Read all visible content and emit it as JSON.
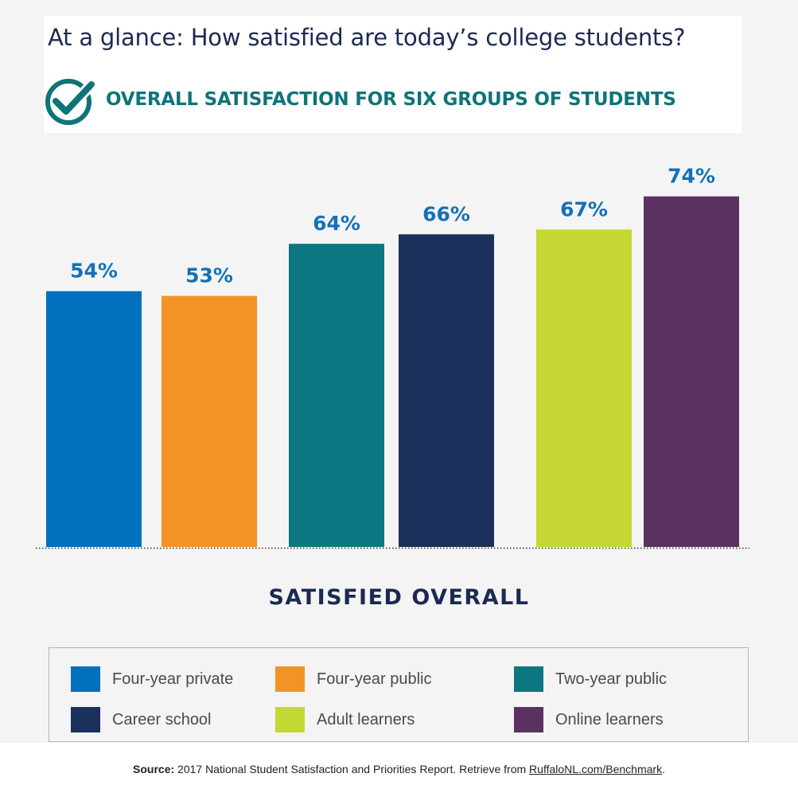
{
  "header": {
    "title": "At a glance: How satisfied are today’s college students?",
    "subtitle": "OVERALL SATISFACTION FOR SIX GROUPS OF STUDENTS",
    "icon": "check-circle-icon"
  },
  "chart_data": {
    "type": "bar",
    "categories": [
      "Four-year private",
      "Four-year public",
      "Two-year public",
      "Career school",
      "Adult learners",
      "Online learners"
    ],
    "values": [
      54,
      53,
      64,
      66,
      67,
      74
    ],
    "value_labels": [
      "54%",
      "53%",
      "64%",
      "66%",
      "67%",
      "74%"
    ],
    "colors": [
      "#0070bd",
      "#f39325",
      "#0c7781",
      "#1b305b",
      "#c4d733",
      "#5a325f"
    ],
    "label_color": "#1570b5",
    "xlabel": "SATISFIED OVERALL",
    "ylim": [
      0,
      80
    ],
    "grid": false,
    "legend": "bottom"
  },
  "legend": {
    "items": [
      {
        "label": "Four-year private",
        "color": "#0070bd"
      },
      {
        "label": "Four-year public",
        "color": "#f39325"
      },
      {
        "label": "Two-year public",
        "color": "#0c7781"
      },
      {
        "label": "Career school",
        "color": "#1b305b"
      },
      {
        "label": "Adult learners",
        "color": "#c4d733"
      },
      {
        "label": "Online learners",
        "color": "#5a325f"
      }
    ]
  },
  "footer": {
    "source_prefix": "Source:",
    "source_text": " 2017 National Student Satisfaction and Priorities Report. Retrieve from ",
    "source_link": "RuffaloNL.com/Benchmark",
    "source_suffix": "."
  }
}
